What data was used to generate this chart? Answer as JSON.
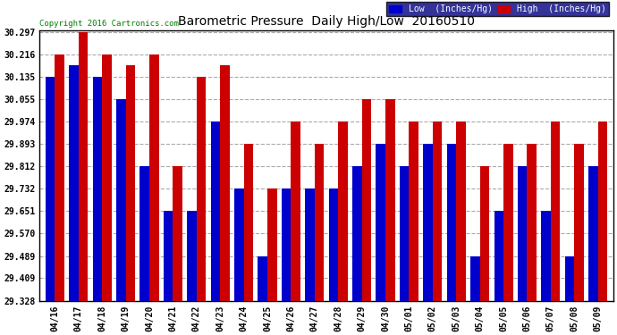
{
  "title": "Barometric Pressure  Daily High/Low  20160510",
  "copyright": "Copyright 2016 Cartronics.com",
  "dates": [
    "04/16",
    "04/17",
    "04/18",
    "04/19",
    "04/20",
    "04/21",
    "04/22",
    "04/23",
    "04/24",
    "04/25",
    "04/26",
    "04/27",
    "04/28",
    "04/29",
    "04/30",
    "05/01",
    "05/02",
    "05/03",
    "05/04",
    "05/05",
    "05/06",
    "05/07",
    "05/08",
    "05/09"
  ],
  "low": [
    30.135,
    30.175,
    30.135,
    30.055,
    29.812,
    29.651,
    29.651,
    29.974,
    29.732,
    29.489,
    29.732,
    29.732,
    29.732,
    29.812,
    29.893,
    29.812,
    29.893,
    29.893,
    29.489,
    29.651,
    29.812,
    29.651,
    29.489,
    29.812
  ],
  "high": [
    30.216,
    30.297,
    30.216,
    30.175,
    30.216,
    29.812,
    30.135,
    30.175,
    29.893,
    29.732,
    29.974,
    29.893,
    29.974,
    30.055,
    30.055,
    29.974,
    29.974,
    29.974,
    29.812,
    29.893,
    29.893,
    29.974,
    29.893,
    29.974
  ],
  "ymin": 29.328,
  "ymax": 30.297,
  "yticks": [
    29.328,
    29.409,
    29.489,
    29.57,
    29.651,
    29.732,
    29.812,
    29.893,
    29.974,
    30.055,
    30.135,
    30.216,
    30.297
  ],
  "low_color": "#0000cc",
  "high_color": "#cc0000",
  "bg_color": "#ffffff",
  "grid_color": "#aaaaaa",
  "title_fontsize": 10,
  "bar_width": 0.4
}
